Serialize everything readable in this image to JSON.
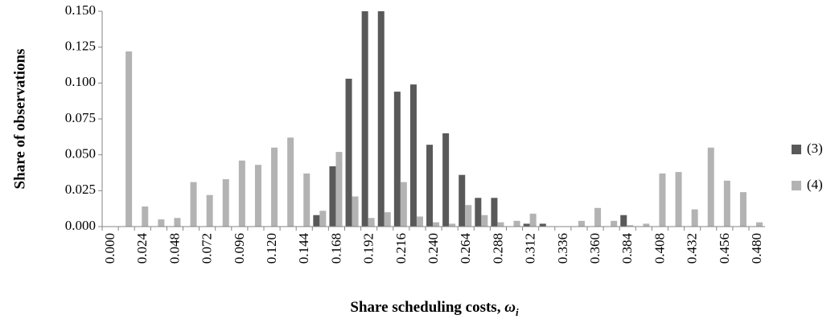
{
  "chart_data": {
    "type": "bar",
    "xlabel": {
      "text": "Share scheduling costs, ",
      "symbol": "ω",
      "subscript": "i"
    },
    "ylabel": "Share of observations",
    "categories": [
      "0.000",
      null,
      "0.024",
      null,
      "0.048",
      null,
      "0.072",
      null,
      "0.096",
      null,
      "0.120",
      null,
      "0.144",
      null,
      "0.168",
      null,
      "0.192",
      null,
      "0.216",
      null,
      "0.240",
      null,
      "0.264",
      null,
      "0.288",
      null,
      "0.312",
      null,
      "0.336",
      null,
      "0.360",
      null,
      "0.384",
      null,
      "0.408",
      null,
      "0.432",
      null,
      "0.456",
      null,
      "0.480"
    ],
    "series": [
      {
        "name": "(3)",
        "color": "#595959",
        "values": [
          0,
          0,
          0,
          0,
          0,
          0,
          0,
          0,
          0,
          0,
          0,
          0,
          0,
          0.008,
          0.042,
          0.103,
          0.15,
          0.15,
          0.094,
          0.099,
          0.057,
          0.065,
          0.036,
          0.02,
          0.02,
          0,
          0.002,
          0.002,
          0,
          0,
          0,
          0,
          0.008,
          0,
          0,
          0,
          0,
          0,
          0,
          0,
          0
        ]
      },
      {
        "name": "(4)",
        "color": "#b3b3b3",
        "values": [
          0,
          0.122,
          0.014,
          0.005,
          0.006,
          0.031,
          0.022,
          0.033,
          0.046,
          0.043,
          0.055,
          0.062,
          0.037,
          0.011,
          0.052,
          0.021,
          0.006,
          0.01,
          0.031,
          0.007,
          0.003,
          0.002,
          0.015,
          0.008,
          0.003,
          0.004,
          0.009,
          0,
          0,
          0.004,
          0.013,
          0.004,
          0.001,
          0.002,
          0.037,
          0.038,
          0.012,
          0.055,
          0.032,
          0.024,
          0.003
        ]
      }
    ],
    "ylim": [
      0,
      0.15
    ],
    "yticks": [
      {
        "value": 0,
        "label": "0.000"
      },
      {
        "value": 0.025,
        "label": "0.025"
      },
      {
        "value": 0.05,
        "label": "0.050"
      },
      {
        "value": 0.075,
        "label": "0.075"
      },
      {
        "value": 0.1,
        "label": "0.100"
      },
      {
        "value": 0.125,
        "label": "0.125"
      },
      {
        "value": 0.15,
        "label": "0.150"
      }
    ],
    "legend": "right"
  }
}
